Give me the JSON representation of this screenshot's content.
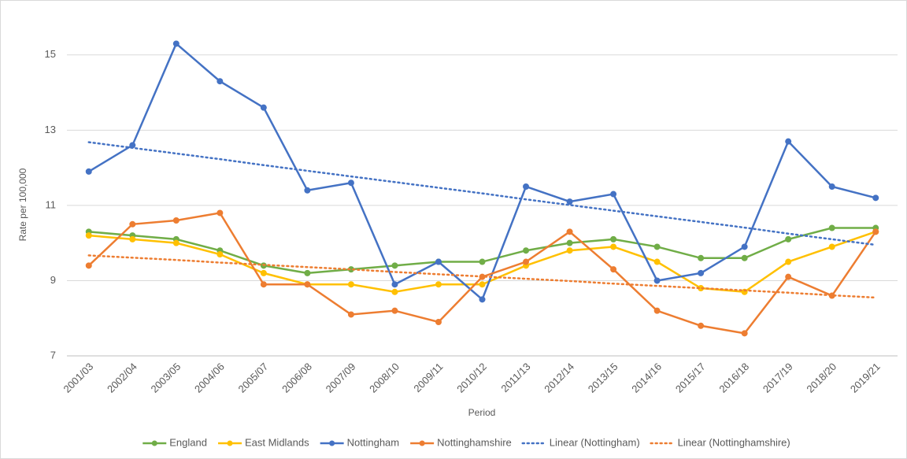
{
  "chart_data": {
    "type": "line",
    "x_label": "Period",
    "y_label": "Rate per 100,000",
    "categories": [
      "2001/03",
      "2002/04",
      "2003/05",
      "2004/06",
      "2005/07",
      "2006/08",
      "2007/09",
      "2008/10",
      "2009/11",
      "2010/12",
      "2011/13",
      "2012/14",
      "2013/15",
      "2014/16",
      "2015/17",
      "2016/18",
      "2017/19",
      "2018/20",
      "2019/21"
    ],
    "ylim": [
      7,
      16
    ],
    "yticks": [
      7,
      9,
      11,
      13,
      15
    ],
    "grid": true,
    "legend": "bottom",
    "series": [
      {
        "name": "England",
        "color": "#70ad47",
        "markers": true,
        "dotted": false,
        "values": [
          10.3,
          10.2,
          10.1,
          9.8,
          9.4,
          9.2,
          9.3,
          9.4,
          9.5,
          9.5,
          9.8,
          10.0,
          10.1,
          9.9,
          9.6,
          9.6,
          10.1,
          10.4,
          10.4
        ]
      },
      {
        "name": "East Midlands",
        "color": "#ffc000",
        "markers": true,
        "dotted": false,
        "values": [
          10.2,
          10.1,
          10.0,
          9.7,
          9.2,
          8.9,
          8.9,
          8.7,
          8.9,
          8.9,
          9.4,
          9.8,
          9.9,
          9.5,
          8.8,
          8.7,
          9.5,
          9.9,
          10.3
        ]
      },
      {
        "name": "Nottingham",
        "color": "#4472c4",
        "markers": true,
        "dotted": false,
        "values": [
          11.9,
          12.6,
          15.3,
          14.3,
          13.6,
          11.4,
          11.6,
          8.9,
          9.5,
          8.5,
          11.5,
          11.1,
          11.3,
          9.0,
          9.2,
          9.9,
          12.7,
          11.5,
          11.2
        ]
      },
      {
        "name": "Nottinghamshire",
        "color": "#ed7d31",
        "markers": true,
        "dotted": false,
        "values": [
          9.4,
          10.5,
          10.6,
          10.8,
          8.9,
          8.9,
          8.1,
          8.2,
          7.9,
          9.1,
          9.5,
          10.3,
          9.3,
          8.2,
          7.8,
          7.6,
          9.1,
          8.6,
          10.3
        ]
      },
      {
        "name": "Linear (Nottingham)",
        "color": "#4472c4",
        "markers": false,
        "dotted": true,
        "values": [
          12.68,
          12.53,
          12.38,
          12.23,
          12.07,
          11.92,
          11.77,
          11.62,
          11.47,
          11.32,
          11.16,
          11.01,
          10.86,
          10.71,
          10.56,
          10.41,
          10.25,
          10.1,
          9.95
        ]
      },
      {
        "name": "Linear (Nottinghamshire)",
        "color": "#ed7d31",
        "markers": false,
        "dotted": true,
        "values": [
          9.67,
          9.61,
          9.55,
          9.48,
          9.42,
          9.36,
          9.3,
          9.23,
          9.17,
          9.11,
          9.05,
          8.99,
          8.92,
          8.86,
          8.8,
          8.74,
          8.68,
          8.61,
          8.55
        ]
      }
    ]
  }
}
